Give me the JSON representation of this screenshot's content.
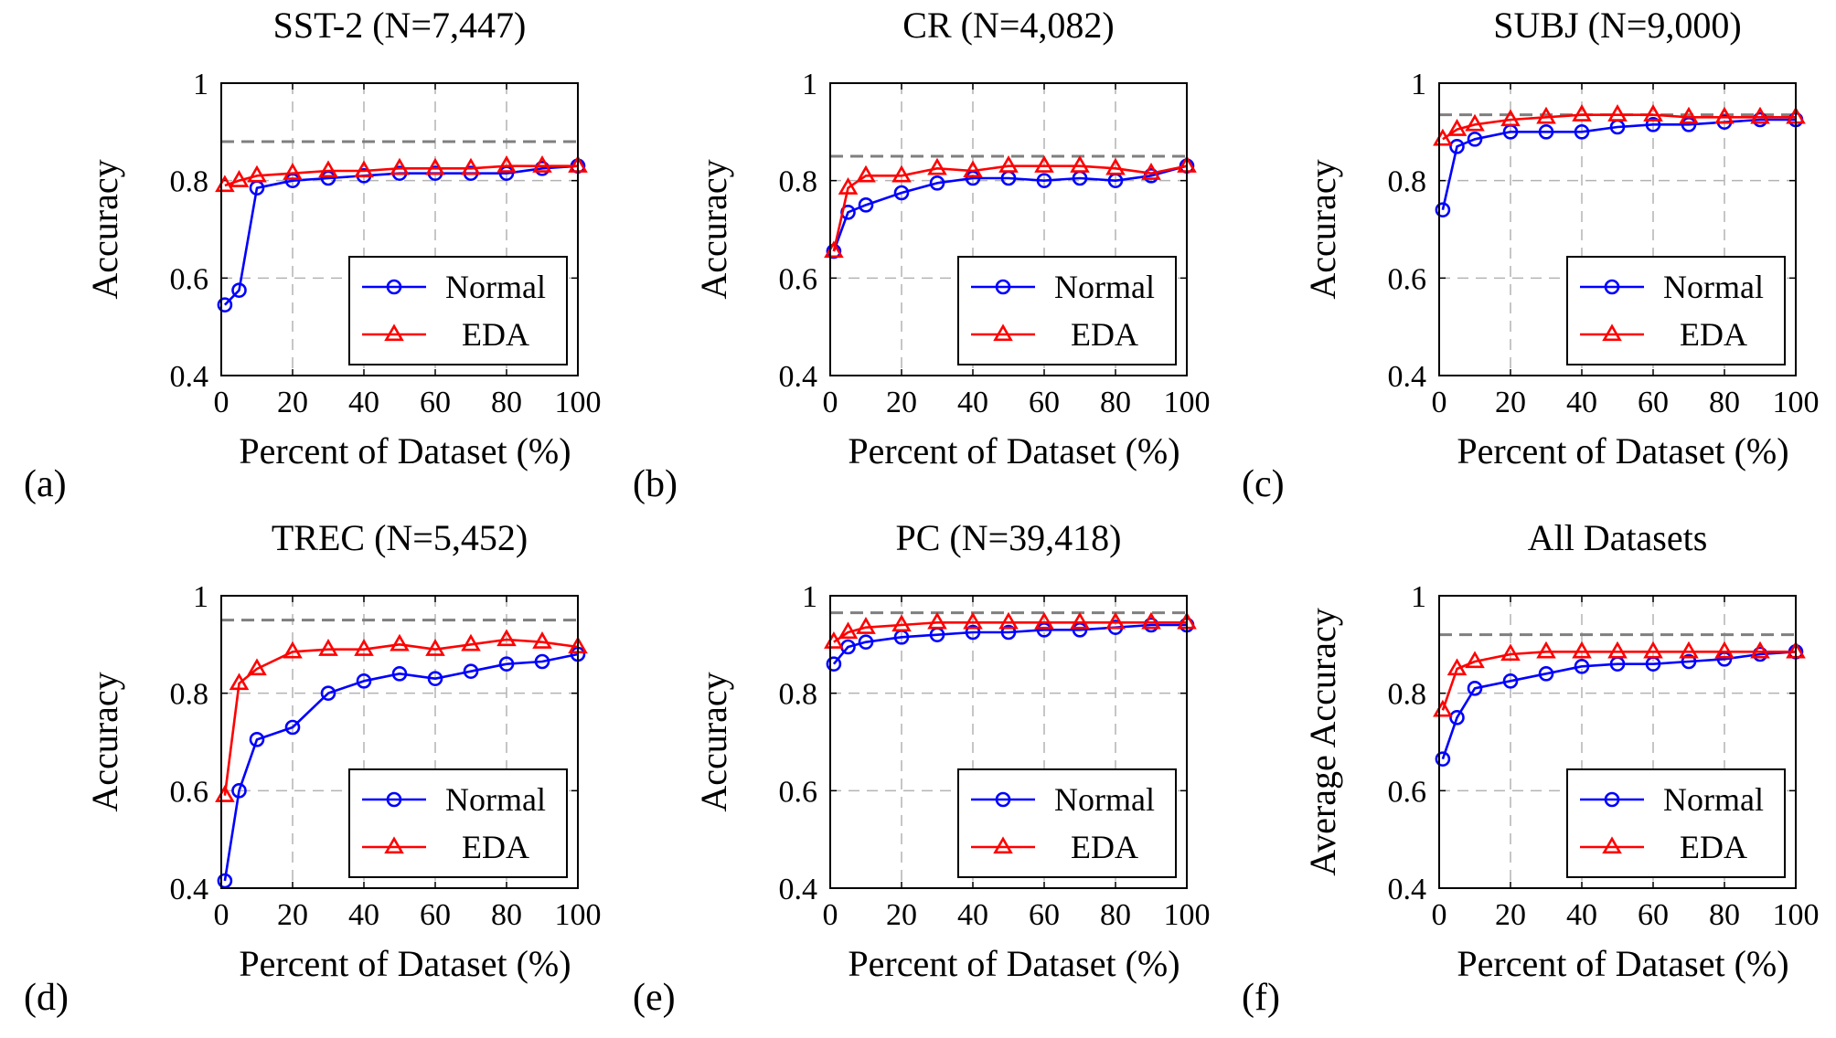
{
  "panel_labels": [
    "(a)",
    "(b)",
    "(c)",
    "(d)",
    "(e)",
    "(f)"
  ],
  "colors": {
    "normal": "#0000ff",
    "eda": "#ff0000",
    "reference_line": "#7f7f7f",
    "grid": "#b3b3b3"
  },
  "chart_data": [
    {
      "type": "line",
      "title": "SST-2 (N=7,447)",
      "xlabel": "Percent of Dataset (%)",
      "ylabel": "Accuracy",
      "xlim": [
        0,
        100
      ],
      "ylim": [
        0.4,
        1
      ],
      "xticks": [
        "0",
        "20",
        "40",
        "60",
        "80",
        "100"
      ],
      "yticks": [
        "0.4",
        "0.6",
        "0.8",
        "1"
      ],
      "grid": true,
      "legend_position": "lower-right",
      "reference_value": 0.88,
      "x": [
        1,
        5,
        10,
        20,
        30,
        40,
        50,
        60,
        70,
        80,
        90,
        100
      ],
      "series": [
        {
          "name": "Normal",
          "marker": "circle",
          "values": [
            0.545,
            0.575,
            0.785,
            0.8,
            0.805,
            0.81,
            0.815,
            0.815,
            0.815,
            0.815,
            0.825,
            0.83
          ]
        },
        {
          "name": "EDA",
          "marker": "triangle",
          "values": [
            0.79,
            0.8,
            0.81,
            0.815,
            0.82,
            0.82,
            0.825,
            0.825,
            0.825,
            0.83,
            0.83,
            0.83
          ]
        }
      ]
    },
    {
      "type": "line",
      "title": "CR (N=4,082)",
      "xlabel": "Percent of Dataset (%)",
      "ylabel": "Accuracy",
      "xlim": [
        0,
        100
      ],
      "ylim": [
        0.4,
        1
      ],
      "xticks": [
        "0",
        "20",
        "40",
        "60",
        "80",
        "100"
      ],
      "yticks": [
        "0.4",
        "0.6",
        "0.8",
        "1"
      ],
      "grid": true,
      "legend_position": "lower-right",
      "reference_value": 0.85,
      "x": [
        1,
        5,
        10,
        20,
        30,
        40,
        50,
        60,
        70,
        80,
        90,
        100
      ],
      "series": [
        {
          "name": "Normal",
          "marker": "circle",
          "values": [
            0.655,
            0.735,
            0.75,
            0.775,
            0.795,
            0.805,
            0.805,
            0.8,
            0.805,
            0.8,
            0.81,
            0.83
          ]
        },
        {
          "name": "EDA",
          "marker": "triangle",
          "values": [
            0.655,
            0.785,
            0.81,
            0.81,
            0.825,
            0.82,
            0.83,
            0.83,
            0.83,
            0.825,
            0.815,
            0.83
          ]
        }
      ]
    },
    {
      "type": "line",
      "title": "SUBJ (N=9,000)",
      "xlabel": "Percent of Dataset (%)",
      "ylabel": "Accuracy",
      "xlim": [
        0,
        100
      ],
      "ylim": [
        0.4,
        1
      ],
      "xticks": [
        "0",
        "20",
        "40",
        "60",
        "80",
        "100"
      ],
      "yticks": [
        "0.4",
        "0.6",
        "0.8",
        "1"
      ],
      "grid": true,
      "legend_position": "lower-right",
      "reference_value": 0.935,
      "x": [
        1,
        5,
        10,
        20,
        30,
        40,
        50,
        60,
        70,
        80,
        90,
        100
      ],
      "series": [
        {
          "name": "Normal",
          "marker": "circle",
          "values": [
            0.74,
            0.87,
            0.885,
            0.9,
            0.9,
            0.9,
            0.91,
            0.915,
            0.915,
            0.92,
            0.925,
            0.925
          ]
        },
        {
          "name": "EDA",
          "marker": "triangle",
          "values": [
            0.885,
            0.905,
            0.915,
            0.925,
            0.93,
            0.935,
            0.935,
            0.935,
            0.93,
            0.93,
            0.93,
            0.93
          ]
        }
      ]
    },
    {
      "type": "line",
      "title": "TREC (N=5,452)",
      "xlabel": "Percent of Dataset (%)",
      "ylabel": "Accuracy",
      "xlim": [
        0,
        100
      ],
      "ylim": [
        0.4,
        1
      ],
      "xticks": [
        "0",
        "20",
        "40",
        "60",
        "80",
        "100"
      ],
      "yticks": [
        "0.4",
        "0.6",
        "0.8",
        "1"
      ],
      "grid": true,
      "legend_position": "lower-right",
      "reference_value": 0.95,
      "x": [
        1,
        5,
        10,
        20,
        30,
        40,
        50,
        60,
        70,
        80,
        90,
        100
      ],
      "series": [
        {
          "name": "Normal",
          "marker": "circle",
          "values": [
            0.415,
            0.6,
            0.705,
            0.73,
            0.8,
            0.825,
            0.84,
            0.83,
            0.845,
            0.86,
            0.865,
            0.88
          ]
        },
        {
          "name": "EDA",
          "marker": "triangle",
          "values": [
            0.59,
            0.82,
            0.85,
            0.885,
            0.89,
            0.89,
            0.9,
            0.89,
            0.9,
            0.91,
            0.905,
            0.895
          ]
        }
      ]
    },
    {
      "type": "line",
      "title": "PC (N=39,418)",
      "xlabel": "Percent of Dataset (%)",
      "ylabel": "Accuracy",
      "xlim": [
        0,
        100
      ],
      "ylim": [
        0.4,
        1
      ],
      "xticks": [
        "0",
        "20",
        "40",
        "60",
        "80",
        "100"
      ],
      "yticks": [
        "0.4",
        "0.6",
        "0.8",
        "1"
      ],
      "grid": true,
      "legend_position": "lower-right",
      "reference_value": 0.965,
      "x": [
        1,
        5,
        10,
        20,
        30,
        40,
        50,
        60,
        70,
        80,
        90,
        100
      ],
      "series": [
        {
          "name": "Normal",
          "marker": "circle",
          "values": [
            0.86,
            0.895,
            0.905,
            0.915,
            0.92,
            0.925,
            0.925,
            0.93,
            0.93,
            0.935,
            0.94,
            0.94
          ]
        },
        {
          "name": "EDA",
          "marker": "triangle",
          "values": [
            0.905,
            0.925,
            0.935,
            0.94,
            0.945,
            0.945,
            0.945,
            0.945,
            0.945,
            0.945,
            0.945,
            0.945
          ]
        }
      ]
    },
    {
      "type": "line",
      "title": "All Datasets",
      "xlabel": "Percent of Dataset (%)",
      "ylabel": "Average Accuracy",
      "xlim": [
        0,
        100
      ],
      "ylim": [
        0.4,
        1
      ],
      "xticks": [
        "0",
        "20",
        "40",
        "60",
        "80",
        "100"
      ],
      "yticks": [
        "0.4",
        "0.6",
        "0.8",
        "1"
      ],
      "grid": true,
      "legend_position": "lower-right",
      "reference_value": 0.92,
      "x": [
        1,
        5,
        10,
        20,
        30,
        40,
        50,
        60,
        70,
        80,
        90,
        100
      ],
      "series": [
        {
          "name": "Normal",
          "marker": "circle",
          "values": [
            0.665,
            0.75,
            0.81,
            0.825,
            0.84,
            0.855,
            0.86,
            0.86,
            0.865,
            0.87,
            0.88,
            0.885
          ]
        },
        {
          "name": "EDA",
          "marker": "triangle",
          "values": [
            0.765,
            0.85,
            0.865,
            0.88,
            0.885,
            0.885,
            0.885,
            0.885,
            0.885,
            0.885,
            0.885,
            0.885
          ]
        }
      ]
    }
  ]
}
